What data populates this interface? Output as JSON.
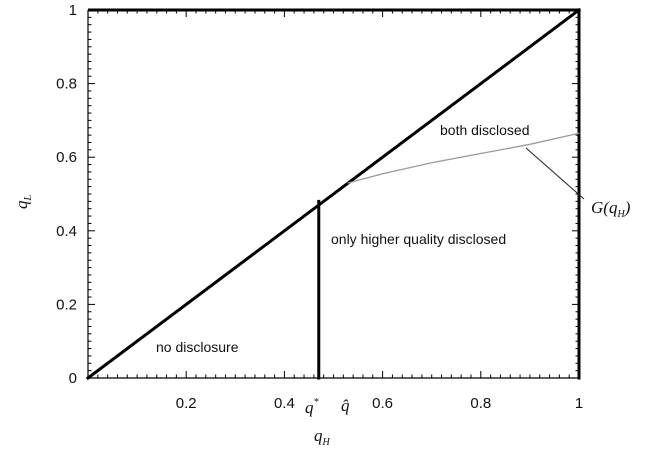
{
  "chart_data": {
    "type": "line",
    "xlabel": "q",
    "xlabel_sub": "H",
    "ylabel": "q",
    "ylabel_sub": "L",
    "xlim": [
      0,
      1
    ],
    "ylim": [
      0,
      1
    ],
    "x_ticks": [
      {
        "value": 0.2,
        "label": "0.2"
      },
      {
        "value": 0.4,
        "label": "0.4"
      },
      {
        "value": 0.6,
        "label": "0.6"
      },
      {
        "value": 0.8,
        "label": "0.8"
      },
      {
        "value": 1,
        "label": "1"
      }
    ],
    "y_ticks": [
      {
        "value": 0,
        "label": "0"
      },
      {
        "value": 0.2,
        "label": "0.2"
      },
      {
        "value": 0.4,
        "label": "0.4"
      },
      {
        "value": 0.6,
        "label": "0.6"
      },
      {
        "value": 0.8,
        "label": "0.8"
      },
      {
        "value": 1,
        "label": "1"
      }
    ],
    "grid": false,
    "series": [
      {
        "values_x": [
          0,
          1
        ],
        "values_y": [
          0,
          1
        ],
        "color": "#000000",
        "style": "thick"
      },
      {
        "values_x": [
          0.47,
          0.47
        ],
        "values_y": [
          0,
          0.48
        ],
        "color": "#000000",
        "style": "thick"
      },
      {
        "values_x": [
          1,
          1
        ],
        "values_y": [
          0,
          1
        ],
        "color": "#000000",
        "style": "thick"
      },
      {
        "values_x": [
          0.53,
          0.6,
          0.7,
          0.8,
          0.9,
          1.0
        ],
        "values_y": [
          0.53,
          0.555,
          0.585,
          0.61,
          0.635,
          0.665
        ],
        "color": "#9a9a9a",
        "style": "thin"
      }
    ],
    "region_labels": {
      "no_disclosure": "no disclosure",
      "only_higher": "only higher quality disclosed",
      "both": "both disclosed"
    },
    "special_ticks": {
      "q_star": {
        "base": "q",
        "sup": "*",
        "value": 0.47
      },
      "q_hat": {
        "base": "q̂",
        "value": 0.535
      }
    },
    "curve_annotation": {
      "G": "G(",
      "q": "q",
      "sub": "H",
      "close": ")"
    }
  }
}
